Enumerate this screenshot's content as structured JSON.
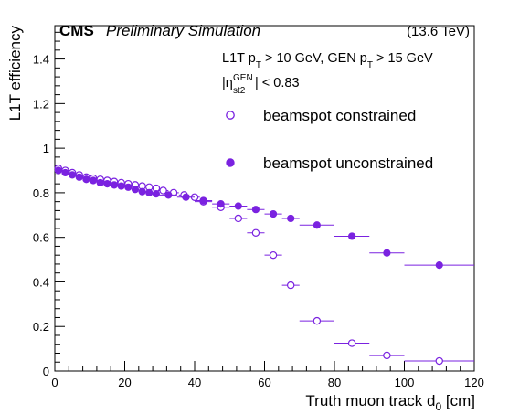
{
  "header": {
    "experiment": "CMS",
    "status": "Preliminary Simulation",
    "energy": "(13.6 TeV)"
  },
  "cuts": {
    "line1_part1": "L1T p",
    "line1_sub1": "T",
    "line1_part2": " > 10 GeV, GEN p",
    "line1_sub2": "T",
    "line1_part3": " > 15 GeV",
    "line2_pre": "|η",
    "line2_sup": "GEN",
    "line2_sub": "st2",
    "line2_post": "| < 0.83"
  },
  "chart_data": {
    "type": "scatter",
    "xlabel": "Truth muon track d",
    "xlabel_sub": "0",
    "xlabel_unit": " [cm]",
    "ylabel": "L1T efficiency",
    "xlim": [
      0,
      120
    ],
    "ylim": [
      0,
      1.55
    ],
    "x_ticks": [
      0,
      20,
      40,
      60,
      80,
      100,
      120
    ],
    "y_ticks": [
      0,
      0.2,
      0.4,
      0.6,
      0.8,
      1,
      1.2,
      1.4
    ],
    "y_tick_labels": [
      "0",
      "0.2",
      "0.4",
      "0.6",
      "0.8",
      "1",
      "1.2",
      "1.4"
    ],
    "grid": false,
    "legend_position": "top-right",
    "colors": {
      "series": "#7a22e0"
    },
    "series": [
      {
        "name": "beamspot constrained",
        "marker": "open-circle",
        "points": [
          {
            "x": 1,
            "xerr": 1,
            "y": 0.91
          },
          {
            "x": 3,
            "xerr": 1,
            "y": 0.9
          },
          {
            "x": 5,
            "xerr": 1,
            "y": 0.89
          },
          {
            "x": 7,
            "xerr": 1,
            "y": 0.88
          },
          {
            "x": 9,
            "xerr": 1,
            "y": 0.87
          },
          {
            "x": 11,
            "xerr": 1,
            "y": 0.865
          },
          {
            "x": 13,
            "xerr": 1,
            "y": 0.86
          },
          {
            "x": 15,
            "xerr": 1,
            "y": 0.855
          },
          {
            "x": 17,
            "xerr": 1,
            "y": 0.85
          },
          {
            "x": 19,
            "xerr": 1,
            "y": 0.845
          },
          {
            "x": 21,
            "xerr": 1,
            "y": 0.84
          },
          {
            "x": 23,
            "xerr": 1,
            "y": 0.835
          },
          {
            "x": 25,
            "xerr": 1,
            "y": 0.83
          },
          {
            "x": 27,
            "xerr": 1,
            "y": 0.825
          },
          {
            "x": 29,
            "xerr": 1,
            "y": 0.82
          },
          {
            "x": 31,
            "xerr": 1.5,
            "y": 0.81
          },
          {
            "x": 34,
            "xerr": 1.5,
            "y": 0.8
          },
          {
            "x": 37,
            "xerr": 1.5,
            "y": 0.79
          },
          {
            "x": 40,
            "xerr": 1.5,
            "y": 0.78
          },
          {
            "x": 42.5,
            "xerr": 2.5,
            "y": 0.76
          },
          {
            "x": 47.5,
            "xerr": 2.5,
            "y": 0.735
          },
          {
            "x": 52.5,
            "xerr": 2.5,
            "y": 0.685
          },
          {
            "x": 57.5,
            "xerr": 2.5,
            "y": 0.62
          },
          {
            "x": 62.5,
            "xerr": 2.5,
            "y": 0.52
          },
          {
            "x": 67.5,
            "xerr": 2.5,
            "y": 0.385
          },
          {
            "x": 75,
            "xerr": 5,
            "y": 0.225
          },
          {
            "x": 85,
            "xerr": 5,
            "y": 0.125
          },
          {
            "x": 95,
            "xerr": 5,
            "y": 0.07
          },
          {
            "x": 110,
            "xerr": 10,
            "y": 0.045
          }
        ]
      },
      {
        "name": "beamspot unconstrained",
        "marker": "filled-circle",
        "points": [
          {
            "x": 1,
            "xerr": 1,
            "y": 0.9
          },
          {
            "x": 3,
            "xerr": 1,
            "y": 0.89
          },
          {
            "x": 5,
            "xerr": 1,
            "y": 0.88
          },
          {
            "x": 7,
            "xerr": 1,
            "y": 0.87
          },
          {
            "x": 9,
            "xerr": 1,
            "y": 0.86
          },
          {
            "x": 11,
            "xerr": 1,
            "y": 0.855
          },
          {
            "x": 13,
            "xerr": 1,
            "y": 0.845
          },
          {
            "x": 15,
            "xerr": 1,
            "y": 0.84
          },
          {
            "x": 17,
            "xerr": 1,
            "y": 0.835
          },
          {
            "x": 19,
            "xerr": 1,
            "y": 0.83
          },
          {
            "x": 21,
            "xerr": 1,
            "y": 0.825
          },
          {
            "x": 23,
            "xerr": 1,
            "y": 0.815
          },
          {
            "x": 25,
            "xerr": 1,
            "y": 0.805
          },
          {
            "x": 27,
            "xerr": 1,
            "y": 0.8
          },
          {
            "x": 29,
            "xerr": 1,
            "y": 0.795
          },
          {
            "x": 32.5,
            "xerr": 2.5,
            "y": 0.79
          },
          {
            "x": 37.5,
            "xerr": 2.5,
            "y": 0.78
          },
          {
            "x": 42.5,
            "xerr": 2.5,
            "y": 0.765
          },
          {
            "x": 47.5,
            "xerr": 2.5,
            "y": 0.75
          },
          {
            "x": 52.5,
            "xerr": 2.5,
            "y": 0.74
          },
          {
            "x": 57.5,
            "xerr": 2.5,
            "y": 0.725
          },
          {
            "x": 62.5,
            "xerr": 2.5,
            "y": 0.705
          },
          {
            "x": 67.5,
            "xerr": 2.5,
            "y": 0.685
          },
          {
            "x": 75,
            "xerr": 5,
            "y": 0.655
          },
          {
            "x": 85,
            "xerr": 5,
            "y": 0.605
          },
          {
            "x": 95,
            "xerr": 5,
            "y": 0.53
          },
          {
            "x": 110,
            "xerr": 10,
            "y": 0.475
          }
        ]
      }
    ]
  }
}
